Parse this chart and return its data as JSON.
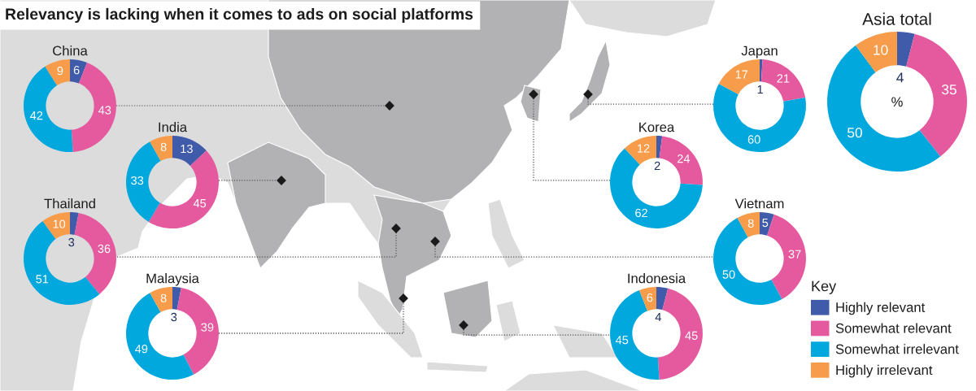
{
  "chart_data": {
    "type": "donut",
    "title": "Relevancy is lacking when it comes to ads on social platforms",
    "categories": [
      "Highly relevant",
      "Somewhat relevant",
      "Somewhat irrelevant",
      "Highly irrelevant"
    ],
    "colors": [
      "#3f5ba9",
      "#e55a9f",
      "#00a8de",
      "#f79c4a"
    ],
    "series": [
      {
        "name": "China",
        "values": [
          6,
          43,
          42,
          9
        ]
      },
      {
        "name": "Japan",
        "values": [
          1,
          21,
          60,
          17
        ]
      },
      {
        "name": "Asia total",
        "values": [
          4,
          35,
          50,
          10
        ]
      },
      {
        "name": "India",
        "values": [
          13,
          45,
          33,
          8
        ]
      },
      {
        "name": "Korea",
        "values": [
          2,
          24,
          62,
          12
        ]
      },
      {
        "name": "Thailand",
        "values": [
          3,
          36,
          51,
          10
        ]
      },
      {
        "name": "Vietnam",
        "values": [
          5,
          37,
          50,
          8
        ]
      },
      {
        "name": "Malaysia",
        "values": [
          3,
          39,
          49,
          8
        ]
      },
      {
        "name": "Indonesia",
        "values": [
          4,
          45,
          45,
          6
        ]
      }
    ],
    "data_labels": true,
    "annotations": [
      "%"
    ],
    "legend": "bottom right",
    "legend_title": "Key"
  }
}
